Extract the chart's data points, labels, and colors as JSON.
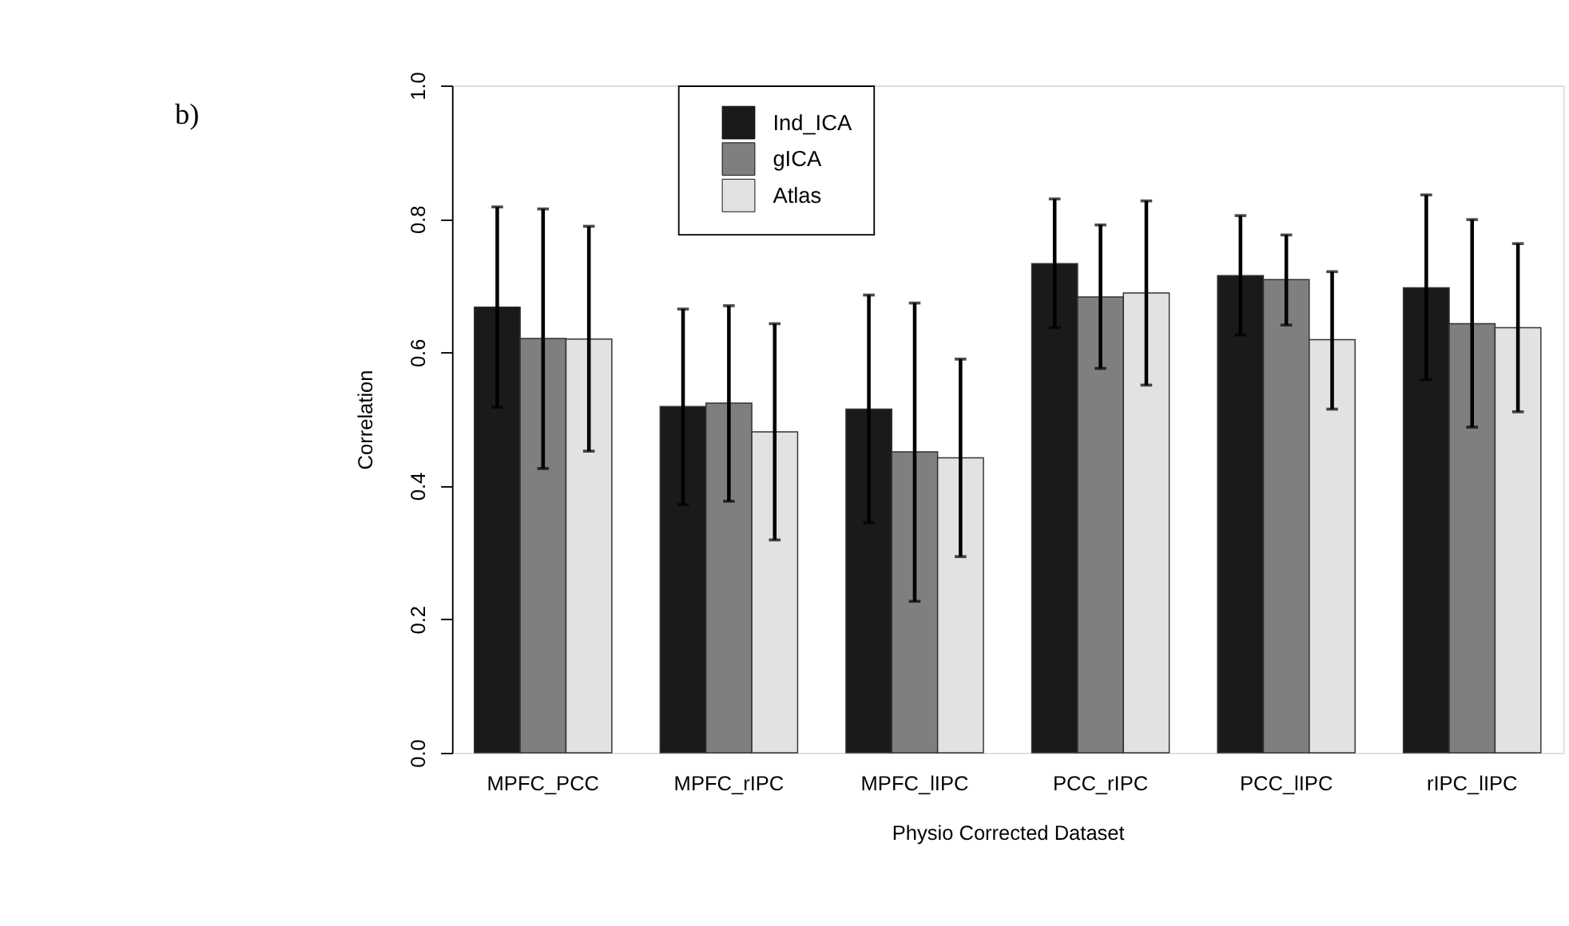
{
  "chart_data": {
    "type": "bar",
    "xlabel": "Physio Corrected Dataset",
    "ylabel": "Correlation",
    "annotations": [
      "b)"
    ],
    "categories": [
      "MPFC_PCC",
      "MPFC_rIPC",
      "MPFC_lIPC",
      "PCC_rIPC",
      "PCC_lIPC",
      "rIPC_lIPC"
    ],
    "series": [
      {
        "name": "Ind_ICA",
        "color": "#1a1a1a",
        "values": [
          0.668,
          0.519,
          0.515,
          0.733,
          0.715,
          0.697
        ],
        "errors": [
          [
            0.518,
            0.818
          ],
          [
            0.372,
            0.665
          ],
          [
            0.345,
            0.686
          ],
          [
            0.637,
            0.83
          ],
          [
            0.626,
            0.805
          ],
          [
            0.559,
            0.836
          ]
        ]
      },
      {
        "name": "gICA",
        "color": "#7f7f7f",
        "values": [
          0.621,
          0.524,
          0.451,
          0.683,
          0.709,
          0.643
        ],
        "errors": [
          [
            0.426,
            0.815
          ],
          [
            0.377,
            0.67
          ],
          [
            0.227,
            0.674
          ],
          [
            0.576,
            0.791
          ],
          [
            0.641,
            0.776
          ],
          [
            0.488,
            0.799
          ]
        ]
      },
      {
        "name": "Atlas",
        "color": "#e2e2e2",
        "values": [
          0.62,
          0.481,
          0.442,
          0.689,
          0.619,
          0.637
        ],
        "errors": [
          [
            0.452,
            0.789
          ],
          [
            0.319,
            0.643
          ],
          [
            0.294,
            0.59
          ],
          [
            0.551,
            0.827
          ],
          [
            0.515,
            0.721
          ],
          [
            0.511,
            0.763
          ]
        ]
      }
    ],
    "ylim": [
      0,
      1
    ],
    "yticks": [
      {
        "value": 0,
        "label": "0.0"
      },
      0.2,
      0.4,
      0.6,
      0.8,
      {
        "value": 1,
        "label": "1.0"
      }
    ],
    "grid": false,
    "legend": "top"
  }
}
